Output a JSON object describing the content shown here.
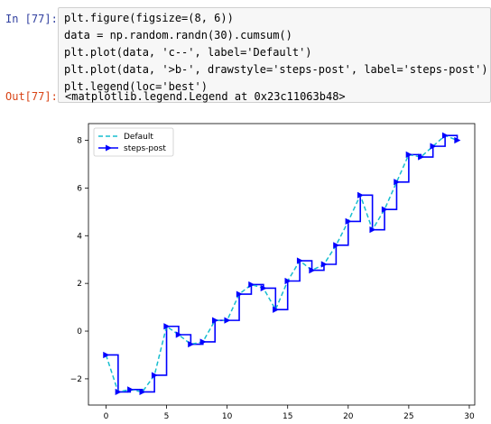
{
  "input_cell": {
    "prompt": "In [77]:",
    "code_lines": [
      "plt.figure(figsize=(8, 6))",
      "data = np.random.randn(30).cumsum()",
      "plt.plot(data, 'c--', label='Default')",
      "plt.plot(data, '>b-', drawstyle='steps-post', label='steps-post')",
      "plt.legend(loc='best')"
    ]
  },
  "output_cell": {
    "prompt": "Out[77]:",
    "text": "<matplotlib.legend.Legend at 0x23c11063b48>"
  },
  "chart_data": {
    "type": "line",
    "x": [
      0,
      1,
      2,
      3,
      4,
      5,
      6,
      7,
      8,
      9,
      10,
      11,
      12,
      13,
      14,
      15,
      16,
      17,
      18,
      19,
      20,
      21,
      22,
      23,
      24,
      25,
      26,
      27,
      28,
      29
    ],
    "series": [
      {
        "name": "Default",
        "style": "dashed",
        "color": "#17becf",
        "values": [
          -1.0,
          -2.55,
          -2.45,
          -2.55,
          -1.85,
          0.2,
          -0.15,
          -0.55,
          -0.45,
          0.45,
          0.45,
          1.55,
          1.95,
          1.8,
          0.9,
          2.1,
          2.95,
          2.55,
          2.8,
          3.6,
          4.6,
          5.7,
          4.25,
          5.1,
          6.25,
          7.4,
          7.3,
          7.75,
          8.2,
          8.0
        ]
      },
      {
        "name": "steps-post",
        "style": "steps-post",
        "marker": ">",
        "color": "#0000ff",
        "values": [
          -1.0,
          -2.55,
          -2.45,
          -2.55,
          -1.85,
          0.2,
          -0.15,
          -0.55,
          -0.45,
          0.45,
          0.45,
          1.55,
          1.95,
          1.8,
          0.9,
          2.1,
          2.95,
          2.55,
          2.8,
          3.6,
          4.6,
          5.7,
          4.25,
          5.1,
          6.25,
          7.4,
          7.3,
          7.75,
          8.2,
          8.0
        ]
      }
    ],
    "xticks": [
      "0",
      "5",
      "10",
      "15",
      "20",
      "25",
      "30"
    ],
    "yticks": [
      "-2",
      "0",
      "2",
      "4",
      "6",
      "8"
    ],
    "xlim": [
      -1.45,
      30.45
    ],
    "ylim": [
      -3.1,
      8.7
    ],
    "legend_loc": "upper left",
    "grid": false
  }
}
